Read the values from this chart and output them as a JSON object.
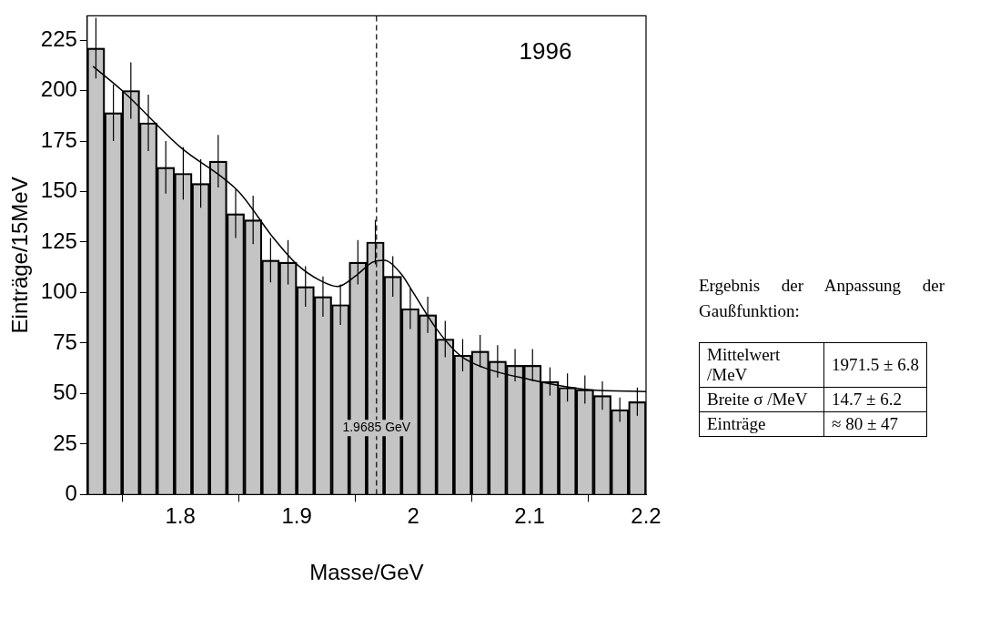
{
  "chart_data": {
    "type": "histogram",
    "xlabel": "Masse/GeV",
    "ylabel": "Einträge/15MeV",
    "bins": [
      1.72,
      1.735,
      1.75,
      1.765,
      1.78,
      1.795,
      1.81,
      1.825,
      1.84,
      1.855,
      1.87,
      1.885,
      1.9,
      1.915,
      1.93,
      1.945,
      1.96,
      1.975,
      1.99,
      2.005,
      2.02,
      2.035,
      2.05,
      2.065,
      2.08,
      2.095,
      2.11,
      2.125,
      2.14,
      2.155,
      2.17,
      2.185,
      2.2
    ],
    "series": [
      {
        "color": "#c4c4c4",
        "values": [
          221,
          189,
          200,
          184,
          162,
          159,
          154,
          165,
          139,
          136,
          116,
          115,
          103,
          98,
          94,
          115,
          125,
          108,
          92,
          89,
          77,
          69,
          71,
          66,
          64,
          64,
          56,
          53,
          52,
          49,
          42,
          46
        ]
      },
      {
        "type": "histogram",
        "color": "#000000",
        "values": [
          221,
          189,
          200,
          184,
          162,
          159,
          154,
          165,
          139,
          136,
          116,
          115,
          103,
          98,
          94,
          115,
          125,
          108,
          92,
          89,
          77,
          69,
          71,
          66,
          64,
          64,
          56,
          53,
          52,
          49,
          42,
          46
        ],
        "errors": [
          15,
          14,
          14,
          14,
          13,
          13,
          12,
          13,
          12,
          12,
          11,
          11,
          10,
          10,
          10,
          11,
          11,
          10,
          10,
          9,
          9,
          8,
          8,
          8,
          8,
          8,
          7,
          7,
          7,
          7,
          6,
          7
        ]
      },
      {
        "type": "line",
        "color": "#000000",
        "x": [
          1.725,
          1.75,
          1.8,
          1.85,
          1.88,
          1.9,
          1.92,
          1.935,
          1.95,
          1.965,
          1.975,
          1.99,
          2.0,
          2.02,
          2.04,
          2.06,
          2.1,
          2.15,
          2.2
        ],
        "values": [
          212,
          200,
          172,
          150,
          127,
          114,
          106,
          103,
          108,
          115,
          116,
          109,
          100,
          82,
          69,
          63,
          57,
          52,
          51
        ]
      }
    ],
    "xlim": [
      1.72,
      2.2
    ],
    "xticks": [
      1.8,
      1.9,
      2,
      2.1,
      2.2
    ],
    "ylim": [
      0,
      237
    ],
    "yticks": [
      0,
      25,
      50,
      75,
      100,
      125,
      150,
      175,
      200,
      225
    ],
    "grid": false,
    "legend": false,
    "marker": "none",
    "ref_lines": [
      {
        "axis": "x",
        "value": 1.9685,
        "label": "1.9685 GeV",
        "line_style": "dashed",
        "color": "#000000"
      }
    ],
    "annotations": [
      "1996",
      "Ergebnis der Anpassung der Gaußfunktion:",
      "Mittelwert /MeV",
      "1971.5 ± 6.8",
      "Breite σ /MeV",
      "14.7 ± 6.2",
      "Einträge",
      "≈ 80 ± 47"
    ]
  }
}
